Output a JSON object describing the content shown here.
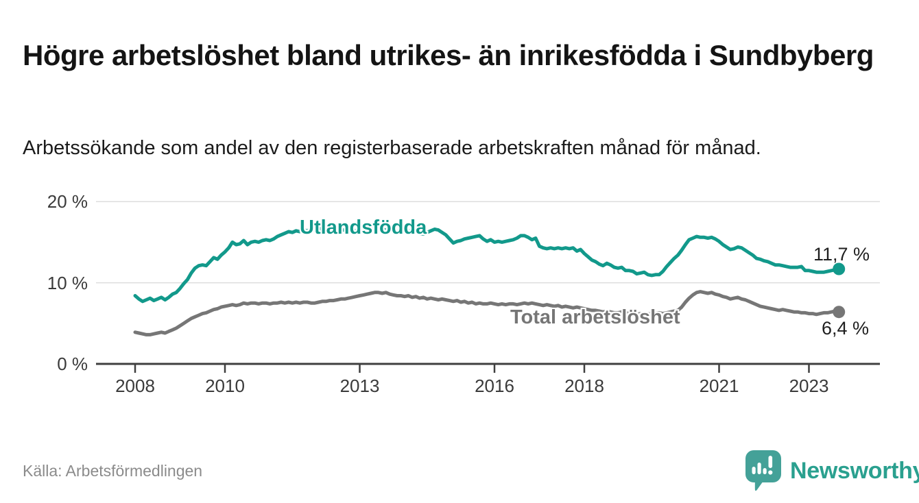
{
  "title": "Högre arbetslöshet bland utrikes- än inrikesfödda i Sundbyberg",
  "subtitle": "Arbetssökande som andel av den registerbaserade arbetskraften månad för månad.",
  "source": "Källa: Arbetsförmedlingen",
  "logo": {
    "text": "Newsworthy",
    "mark_color": "#44a198",
    "text_color": "#2aa08f"
  },
  "colors": {
    "foreign_born_line": "#12998b",
    "total_line": "#767676",
    "grid": "#dddddd",
    "axis": "#3f3f3f",
    "axis_text": "#3a3a3a",
    "value_text": "#1f1f1f"
  },
  "chart_data": {
    "type": "line",
    "title": "Högre arbetslöshet bland utrikes- än inrikesfödda i Sundbyberg",
    "subtitle": "Arbetssökande som andel av den registerbaserade arbetskraften månad för månad.",
    "x_unit": "month",
    "x_start": "2008-01",
    "x_end": "2023-09",
    "x_ticks": [
      2008,
      2010,
      2013,
      2016,
      2018,
      2021,
      2023
    ],
    "y_ticks": [
      0,
      10,
      20
    ],
    "y_tick_labels": [
      "0 %",
      "10 %",
      "20 %"
    ],
    "ylim": [
      0,
      20
    ],
    "grid": "horizontal-only",
    "legend_position": "inline-labels",
    "series": [
      {
        "name": "Utlandsfödda",
        "color": "#12998b",
        "end_label": "11,7 %",
        "end_value": 11.7,
        "values": [
          8.4,
          8.0,
          7.7,
          7.9,
          8.1,
          7.8,
          8.0,
          8.2,
          7.9,
          8.2,
          8.6,
          8.8,
          9.3,
          9.9,
          10.4,
          11.2,
          11.8,
          12.1,
          12.2,
          12.1,
          12.6,
          13.1,
          12.9,
          13.4,
          13.8,
          14.3,
          15.0,
          14.7,
          14.8,
          15.2,
          14.7,
          15.0,
          15.1,
          15.0,
          15.2,
          15.3,
          15.2,
          15.4,
          15.7,
          15.9,
          16.1,
          16.3,
          16.2,
          16.4,
          16.3,
          16.5,
          16.4,
          16.6,
          16.5,
          16.6,
          16.7,
          16.6,
          16.5,
          16.6,
          16.4,
          16.5,
          16.5,
          16.4,
          16.5,
          16.4,
          16.4,
          16.5,
          16.4,
          16.5,
          16.6,
          16.5,
          16.6,
          16.5,
          16.4,
          16.5,
          16.3,
          16.4,
          16.3,
          16.4,
          16.2,
          16.3,
          16.1,
          16.0,
          16.2,
          16.4,
          16.6,
          16.5,
          16.2,
          15.9,
          15.4,
          14.9,
          15.1,
          15.2,
          15.4,
          15.5,
          15.6,
          15.7,
          15.8,
          15.4,
          15.1,
          15.3,
          15.0,
          15.1,
          15.0,
          15.1,
          15.2,
          15.3,
          15.5,
          15.8,
          15.8,
          15.6,
          15.3,
          15.5,
          14.5,
          14.3,
          14.2,
          14.3,
          14.2,
          14.3,
          14.2,
          14.3,
          14.2,
          14.3,
          13.9,
          14.1,
          13.6,
          13.2,
          12.8,
          12.6,
          12.3,
          12.1,
          12.4,
          12.2,
          11.9,
          11.8,
          11.9,
          11.5,
          11.5,
          11.4,
          11.1,
          11.2,
          11.3,
          11.0,
          10.9,
          11.0,
          11.0,
          11.4,
          12.0,
          12.5,
          13.0,
          13.4,
          14.0,
          14.7,
          15.3,
          15.5,
          15.7,
          15.6,
          15.6,
          15.5,
          15.6,
          15.4,
          15.1,
          14.7,
          14.4,
          14.1,
          14.2,
          14.4,
          14.3,
          14.0,
          13.7,
          13.4,
          13.0,
          12.9,
          12.7,
          12.6,
          12.4,
          12.2,
          12.2,
          12.1,
          12.0,
          11.9,
          11.9,
          11.9,
          12.0,
          11.5,
          11.5,
          11.4,
          11.3,
          11.3,
          11.3,
          11.4,
          11.5,
          11.6,
          11.7
        ]
      },
      {
        "name": "Total arbetslöshet",
        "color": "#767676",
        "end_label": "6,4 %",
        "end_value": 6.4,
        "values": [
          3.9,
          3.8,
          3.7,
          3.6,
          3.6,
          3.7,
          3.8,
          3.9,
          3.8,
          4.0,
          4.2,
          4.4,
          4.7,
          5.0,
          5.3,
          5.6,
          5.8,
          6.0,
          6.2,
          6.3,
          6.5,
          6.7,
          6.8,
          7.0,
          7.1,
          7.2,
          7.3,
          7.2,
          7.3,
          7.5,
          7.4,
          7.5,
          7.5,
          7.4,
          7.5,
          7.5,
          7.4,
          7.5,
          7.5,
          7.6,
          7.5,
          7.6,
          7.5,
          7.6,
          7.5,
          7.6,
          7.6,
          7.5,
          7.5,
          7.6,
          7.7,
          7.7,
          7.8,
          7.8,
          7.9,
          8.0,
          8.0,
          8.1,
          8.2,
          8.3,
          8.4,
          8.5,
          8.6,
          8.7,
          8.8,
          8.8,
          8.7,
          8.8,
          8.6,
          8.5,
          8.4,
          8.4,
          8.3,
          8.4,
          8.2,
          8.3,
          8.1,
          8.2,
          8.0,
          8.1,
          8.0,
          7.9,
          8.0,
          7.9,
          7.8,
          7.7,
          7.8,
          7.6,
          7.7,
          7.5,
          7.6,
          7.4,
          7.5,
          7.4,
          7.4,
          7.5,
          7.4,
          7.3,
          7.4,
          7.3,
          7.4,
          7.4,
          7.3,
          7.4,
          7.5,
          7.4,
          7.5,
          7.4,
          7.3,
          7.2,
          7.3,
          7.2,
          7.1,
          7.2,
          7.0,
          7.1,
          7.0,
          6.9,
          7.0,
          6.9,
          6.8,
          6.7,
          6.6,
          6.6,
          6.5,
          6.4,
          6.5,
          6.4,
          6.3,
          6.3,
          6.4,
          6.3,
          6.2,
          6.2,
          6.1,
          6.2,
          6.1,
          6.2,
          6.1,
          6.2,
          6.3,
          6.2,
          6.3,
          6.4,
          6.5,
          6.6,
          7.0,
          7.6,
          8.1,
          8.5,
          8.8,
          8.9,
          8.8,
          8.7,
          8.8,
          8.6,
          8.5,
          8.3,
          8.2,
          8.0,
          8.1,
          8.2,
          8.0,
          7.9,
          7.7,
          7.5,
          7.3,
          7.1,
          7.0,
          6.9,
          6.8,
          6.7,
          6.6,
          6.7,
          6.6,
          6.5,
          6.4,
          6.4,
          6.3,
          6.3,
          6.2,
          6.2,
          6.1,
          6.2,
          6.3,
          6.3,
          6.4,
          6.5,
          6.4
        ]
      }
    ]
  }
}
